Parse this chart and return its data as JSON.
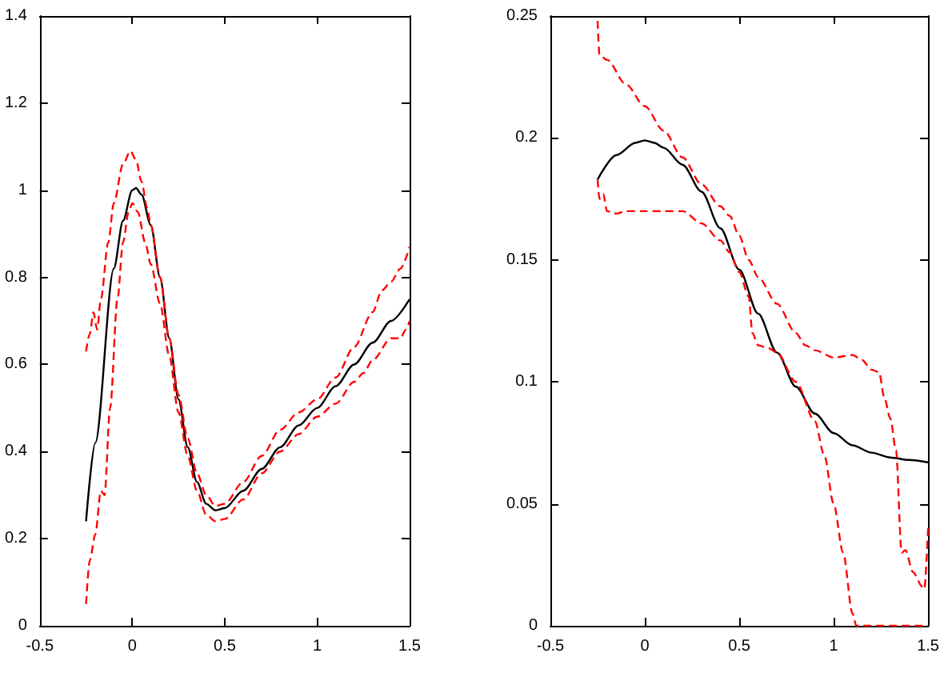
{
  "chart_data": [
    {
      "type": "line",
      "xlim": [
        -0.5,
        1.5
      ],
      "xticks": [
        -0.5,
        0,
        0.5,
        1,
        1.5
      ],
      "ylim": [
        0,
        1.4
      ],
      "yticks": [
        0,
        0.2,
        0.4,
        0.6,
        0.8,
        1,
        1.2,
        1.4
      ],
      "grid": false,
      "marker": "none",
      "series": [
        {
          "color": "#000000",
          "line_style": "solid",
          "x": [
            -0.25,
            -0.2,
            -0.1,
            -0.05,
            0,
            0.02,
            0.05,
            0.1,
            0.15,
            0.2,
            0.25,
            0.3,
            0.35,
            0.4,
            0.45,
            0.5,
            0.6,
            0.7,
            0.8,
            0.9,
            1,
            1.1,
            1.2,
            1.3,
            1.4,
            1.5
          ],
          "values": [
            0.24,
            0.42,
            0.82,
            0.93,
            1,
            1.005,
            0.99,
            0.92,
            0.8,
            0.66,
            0.52,
            0.41,
            0.33,
            0.28,
            0.265,
            0.27,
            0.31,
            0.36,
            0.41,
            0.46,
            0.5,
            0.55,
            0.6,
            0.65,
            0.7,
            0.75
          ]
        },
        {
          "color": "#ff0000",
          "line_style": "dashed",
          "x": [
            -0.25,
            -0.23,
            -0.21,
            -0.19,
            -0.17,
            -0.13,
            -0.1,
            -0.05,
            -0.01,
            0.02,
            0.05,
            0.08,
            0.1,
            0.15,
            0.2,
            0.25,
            0.3,
            0.35,
            0.4,
            0.45,
            0.5,
            0.6,
            0.7,
            0.8,
            0.9,
            1,
            1.1,
            1.2,
            1.3,
            1.35,
            1.4,
            1.45,
            1.5
          ],
          "values": [
            0.63,
            0.67,
            0.72,
            0.68,
            0.75,
            0.88,
            0.97,
            1.06,
            1.09,
            1.07,
            1.02,
            0.96,
            0.92,
            0.8,
            0.66,
            0.53,
            0.43,
            0.35,
            0.3,
            0.275,
            0.28,
            0.33,
            0.39,
            0.45,
            0.49,
            0.52,
            0.57,
            0.64,
            0.72,
            0.77,
            0.79,
            0.82,
            0.87
          ]
        },
        {
          "color": "#ff0000",
          "line_style": "dashed",
          "x": [
            -0.25,
            -0.23,
            -0.2,
            -0.17,
            -0.15,
            -0.12,
            -0.08,
            -0.05,
            -0.02,
            0,
            0.03,
            0.07,
            0.1,
            0.15,
            0.2,
            0.25,
            0.3,
            0.35,
            0.4,
            0.45,
            0.5,
            0.6,
            0.7,
            0.8,
            0.9,
            1,
            1.1,
            1.2,
            1.25,
            1.3,
            1.4,
            1.45,
            1.48,
            1.5
          ],
          "values": [
            0.05,
            0.15,
            0.21,
            0.31,
            0.3,
            0.5,
            0.75,
            0.88,
            0.95,
            0.97,
            0.95,
            0.88,
            0.83,
            0.74,
            0.62,
            0.49,
            0.39,
            0.31,
            0.255,
            0.24,
            0.245,
            0.29,
            0.35,
            0.4,
            0.44,
            0.48,
            0.51,
            0.56,
            0.58,
            0.61,
            0.66,
            0.66,
            0.68,
            0.7
          ]
        }
      ]
    },
    {
      "type": "line",
      "xlim": [
        -0.5,
        1.5
      ],
      "xticks": [
        -0.5,
        0,
        0.5,
        1,
        1.5
      ],
      "ylim": [
        0,
        0.25
      ],
      "yticks": [
        0,
        0.05,
        0.1,
        0.15,
        0.2,
        0.25
      ],
      "grid": false,
      "marker": "none",
      "series": [
        {
          "color": "#000000",
          "line_style": "solid",
          "x": [
            -0.25,
            -0.15,
            -0.05,
            0,
            0.05,
            0.1,
            0.2,
            0.3,
            0.4,
            0.5,
            0.6,
            0.7,
            0.8,
            0.9,
            1,
            1.1,
            1.2,
            1.3,
            1.4,
            1.5
          ],
          "values": [
            0.183,
            0.193,
            0.198,
            0.199,
            0.198,
            0.196,
            0.189,
            0.178,
            0.163,
            0.146,
            0.128,
            0.112,
            0.098,
            0.087,
            0.079,
            0.074,
            0.071,
            0.069,
            0.068,
            0.067
          ]
        },
        {
          "color": "#ff0000",
          "line_style": "dashed",
          "x": [
            -0.25,
            -0.24,
            -0.2,
            -0.1,
            0,
            0.1,
            0.2,
            0.3,
            0.4,
            0.45,
            0.5,
            0.55,
            0.6,
            0.7,
            0.8,
            0.85,
            0.9,
            1,
            1.1,
            1.15,
            1.2,
            1.24,
            1.27,
            1.3,
            1.33,
            1.36,
            1.38,
            1.42,
            1.47,
            1.48,
            1.5
          ],
          "values": [
            0.248,
            0.234,
            0.232,
            0.222,
            0.213,
            0.203,
            0.192,
            0.181,
            0.172,
            0.168,
            0.16,
            0.15,
            0.143,
            0.132,
            0.12,
            0.115,
            0.113,
            0.11,
            0.111,
            0.109,
            0.105,
            0.104,
            0.093,
            0.085,
            0.072,
            0.03,
            0.031,
            0.022,
            0.016,
            0.015,
            0.04
          ]
        },
        {
          "color": "#ff0000",
          "line_style": "dashed",
          "x": [
            -0.25,
            -0.24,
            -0.22,
            -0.2,
            -0.15,
            -0.1,
            0,
            0.1,
            0.2,
            0.3,
            0.4,
            0.45,
            0.5,
            0.55,
            0.57,
            0.6,
            0.65,
            0.7,
            0.8,
            0.9,
            0.95,
            1,
            1.05,
            1.1,
            1.12,
            1.3,
            1.5
          ],
          "values": [
            0.183,
            0.175,
            0.177,
            0.17,
            0.169,
            0.17,
            0.17,
            0.17,
            0.17,
            0.165,
            0.158,
            0.153,
            0.145,
            0.135,
            0.12,
            0.115,
            0.114,
            0.112,
            0.1,
            0.084,
            0.07,
            0.05,
            0.03,
            0.005,
            0,
            0,
            0
          ]
        }
      ]
    }
  ]
}
